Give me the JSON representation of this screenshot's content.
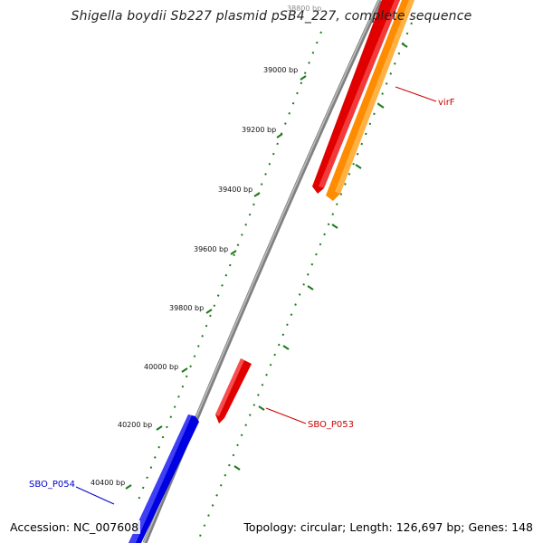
{
  "title": "Shigella boydii Sb227 plasmid pSB4_227, complete sequence",
  "footer": {
    "accession_label": "Accession:",
    "accession": "NC_007608",
    "topology_label": "Topology:",
    "topology": "circular",
    "length_label": "Length:",
    "length": "126,697 bp",
    "genes_label": "Genes:",
    "genes": "148"
  },
  "ticks": [
    "38800 bp",
    "39000 bp",
    "39200 bp",
    "39400 bp",
    "39600 bp",
    "39800 bp",
    "40000 bp",
    "40200 bp",
    "40400 bp"
  ],
  "genes": [
    {
      "name": "virF",
      "strand": "reverse",
      "color": "#ff8c00"
    },
    {
      "name": "SBO_P053",
      "strand": "reverse",
      "color": "#ff0000"
    },
    {
      "name": "SBO_P054",
      "strand": "forward",
      "color": "#0000ff"
    }
  ],
  "colors": {
    "backbone": "#808080",
    "forward_gene": "#ff0000",
    "orange_gene": "#ff8c00",
    "blue_gene": "#0000ff",
    "tick": "#1f7a1f",
    "red_label": "#cc0000",
    "blue_label": "#0000cc"
  }
}
